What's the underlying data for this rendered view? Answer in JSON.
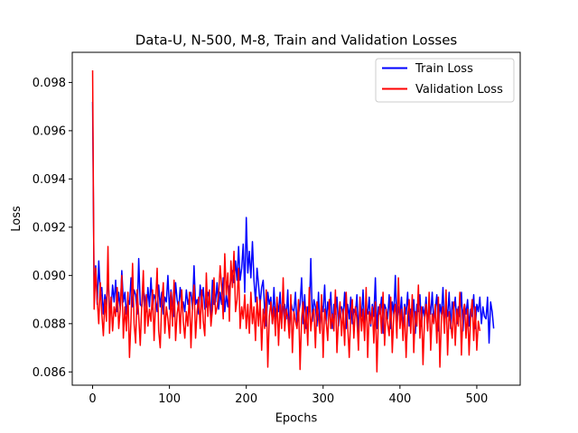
{
  "chart_data": {
    "type": "line",
    "title": "Data-U, N-500, M-8, Train and Validation Losses",
    "xlabel": "Epochs",
    "ylabel": "Loss",
    "xlim": [
      -26.5,
      556.5
    ],
    "ylim": [
      0.08545,
      0.09925
    ],
    "xticks": [
      0,
      100,
      200,
      300,
      400,
      500
    ],
    "yticks": [
      0.086,
      0.088,
      0.09,
      0.092,
      0.094,
      0.096,
      0.098
    ],
    "ytick_labels": [
      "0.086",
      "0.088",
      "0.090",
      "0.092",
      "0.094",
      "0.096",
      "0.098"
    ],
    "grid": false,
    "legend_position": "top-right",
    "series": [
      {
        "name": "Train Loss",
        "color": "#0000ff",
        "x_start": 0,
        "x_step": 2,
        "values": [
          0.0972,
          0.089,
          0.0904,
          0.0888,
          0.0906,
          0.0893,
          0.0895,
          0.0884,
          0.0892,
          0.0888,
          0.09,
          0.0887,
          0.0886,
          0.0896,
          0.0889,
          0.0898,
          0.0885,
          0.0893,
          0.0886,
          0.0902,
          0.0889,
          0.0893,
          0.0884,
          0.089,
          0.0888,
          0.0899,
          0.0887,
          0.0894,
          0.0892,
          0.0884,
          0.0907,
          0.0888,
          0.0887,
          0.0894,
          0.0891,
          0.0885,
          0.0895,
          0.0887,
          0.0899,
          0.0886,
          0.0892,
          0.089,
          0.0885,
          0.0896,
          0.0887,
          0.0893,
          0.0884,
          0.0891,
          0.0889,
          0.09,
          0.0886,
          0.0894,
          0.0888,
          0.0883,
          0.0897,
          0.089,
          0.0886,
          0.0895,
          0.0887,
          0.0889,
          0.0885,
          0.0894,
          0.0888,
          0.0891,
          0.0893,
          0.0886,
          0.0904,
          0.0888,
          0.089,
          0.0884,
          0.0896,
          0.0889,
          0.0895,
          0.0886,
          0.0887,
          0.0893,
          0.0891,
          0.0883,
          0.0898,
          0.0888,
          0.0889,
          0.0897,
          0.0886,
          0.0893,
          0.0888,
          0.0899,
          0.0885,
          0.0892,
          0.0887,
          0.0895,
          0.0898,
          0.0902,
          0.0897,
          0.0906,
          0.0898,
          0.0912,
          0.0898,
          0.0903,
          0.0913,
          0.0893,
          0.0924,
          0.0901,
          0.091,
          0.0899,
          0.0914,
          0.0898,
          0.0889,
          0.0903,
          0.0896,
          0.0888,
          0.0895,
          0.0898,
          0.0885,
          0.0879,
          0.0893,
          0.0888,
          0.0891,
          0.088,
          0.0895,
          0.0882,
          0.0889,
          0.0885,
          0.0893,
          0.088,
          0.0887,
          0.0888,
          0.0882,
          0.0894,
          0.0876,
          0.0889,
          0.0886,
          0.0885,
          0.0893,
          0.0879,
          0.0884,
          0.0888,
          0.0899,
          0.088,
          0.0892,
          0.0878,
          0.0887,
          0.0885,
          0.0907,
          0.0881,
          0.089,
          0.0887,
          0.0879,
          0.0893,
          0.0877,
          0.0888,
          0.0885,
          0.0896,
          0.088,
          0.0889,
          0.0884,
          0.0893,
          0.0878,
          0.0888,
          0.0884,
          0.0891,
          0.0879,
          0.0886,
          0.0887,
          0.0883,
          0.0893,
          0.0878,
          0.0888,
          0.0882,
          0.0891,
          0.088,
          0.0886,
          0.0884,
          0.0892,
          0.0876,
          0.0888,
          0.0883,
          0.0894,
          0.0878,
          0.0887,
          0.0884,
          0.0891,
          0.0879,
          0.0888,
          0.0883,
          0.0899,
          0.0878,
          0.0887,
          0.0884,
          0.0891,
          0.0876,
          0.0888,
          0.0886,
          0.0882,
          0.0892,
          0.0878,
          0.0889,
          0.0884,
          0.09,
          0.0879,
          0.0887,
          0.0883,
          0.0891,
          0.0877,
          0.0888,
          0.0884,
          0.0893,
          0.0879,
          0.0886,
          0.0883,
          0.089,
          0.0876,
          0.0888,
          0.0885,
          0.0892,
          0.0879,
          0.0887,
          0.0883,
          0.0891,
          0.0878,
          0.0889,
          0.0884,
          0.0893,
          0.088,
          0.0886,
          0.0892,
          0.0877,
          0.0888,
          0.0884,
          0.0895,
          0.0879,
          0.0887,
          0.0883,
          0.0893,
          0.0878,
          0.0889,
          0.0885,
          0.0891,
          0.088,
          0.0887,
          0.0883,
          0.0893,
          0.0877,
          0.0888,
          0.0884,
          0.089,
          0.0879,
          0.0886,
          0.0883,
          0.0892,
          0.0878,
          0.0888,
          0.0885,
          0.0891,
          0.088,
          0.0887,
          0.0883,
          0.0882,
          0.0891,
          0.0872,
          0.0889,
          0.0885,
          0.0878
        ]
      },
      {
        "name": "Validation Loss",
        "color": "#ff0000",
        "x_start": 0,
        "x_step": 2,
        "values": [
          0.0985,
          0.0886,
          0.0903,
          0.089,
          0.088,
          0.0897,
          0.0884,
          0.0875,
          0.089,
          0.0881,
          0.0912,
          0.0876,
          0.0891,
          0.0877,
          0.0887,
          0.0883,
          0.0895,
          0.0878,
          0.0886,
          0.09,
          0.0874,
          0.0887,
          0.0877,
          0.0893,
          0.0866,
          0.0882,
          0.0905,
          0.088,
          0.0872,
          0.0894,
          0.0883,
          0.0871,
          0.0888,
          0.0902,
          0.0876,
          0.0892,
          0.0879,
          0.0886,
          0.0881,
          0.0894,
          0.0873,
          0.0889,
          0.0903,
          0.0877,
          0.087,
          0.0889,
          0.0897,
          0.0876,
          0.0887,
          0.0882,
          0.0874,
          0.0893,
          0.0879,
          0.0898,
          0.0873,
          0.0884,
          0.0889,
          0.0876,
          0.0894,
          0.0881,
          0.0874,
          0.0885,
          0.0879,
          0.0893,
          0.087,
          0.0887,
          0.0896,
          0.0874,
          0.0885,
          0.0891,
          0.0878,
          0.0894,
          0.0881,
          0.0875,
          0.0901,
          0.0883,
          0.0894,
          0.0879,
          0.0886,
          0.0899,
          0.0884,
          0.0887,
          0.0892,
          0.0904,
          0.0895,
          0.0882,
          0.0909,
          0.0892,
          0.0901,
          0.0881,
          0.0906,
          0.0895,
          0.091,
          0.0885,
          0.089,
          0.0903,
          0.0878,
          0.0887,
          0.0882,
          0.0892,
          0.0878,
          0.0888,
          0.0876,
          0.0893,
          0.088,
          0.0887,
          0.0873,
          0.0891,
          0.0879,
          0.089,
          0.0869,
          0.0886,
          0.0878,
          0.0894,
          0.0862,
          0.0883,
          0.0889,
          0.088,
          0.0887,
          0.0875,
          0.0891,
          0.0871,
          0.0888,
          0.0878,
          0.0899,
          0.0877,
          0.0886,
          0.0883,
          0.0874,
          0.0892,
          0.0868,
          0.0885,
          0.0881,
          0.0878,
          0.089,
          0.0861,
          0.0882,
          0.0889,
          0.0876,
          0.0887,
          0.0871,
          0.0895,
          0.0877,
          0.0884,
          0.0886,
          0.087,
          0.0889,
          0.0882,
          0.0876,
          0.0892,
          0.0866,
          0.0886,
          0.0881,
          0.0873,
          0.089,
          0.0878,
          0.0884,
          0.0877,
          0.0894,
          0.0868,
          0.0882,
          0.0889,
          0.0875,
          0.0886,
          0.0871,
          0.0893,
          0.0879,
          0.0866,
          0.0884,
          0.089,
          0.0874,
          0.0887,
          0.0882,
          0.0869,
          0.0891,
          0.0877,
          0.0886,
          0.0873,
          0.0895,
          0.0866,
          0.0885,
          0.088,
          0.0887,
          0.0872,
          0.0889,
          0.086,
          0.0883,
          0.0888,
          0.0876,
          0.0893,
          0.0871,
          0.0886,
          0.088,
          0.0875,
          0.0891,
          0.0868,
          0.0884,
          0.0888,
          0.0874,
          0.0899,
          0.0878,
          0.0886,
          0.0873,
          0.0887,
          0.0866,
          0.0883,
          0.089,
          0.0876,
          0.0892,
          0.0868,
          0.0885,
          0.0879,
          0.0896,
          0.0874,
          0.0887,
          0.0863,
          0.0882,
          0.0888,
          0.0877,
          0.0893,
          0.0869,
          0.0884,
          0.088,
          0.0888,
          0.0872,
          0.0891,
          0.0862,
          0.0883,
          0.0887,
          0.0876,
          0.0894,
          0.0867,
          0.0885,
          0.088,
          0.0874,
          0.0889,
          0.0871,
          0.0886,
          0.0879,
          0.0893,
          0.0867,
          0.0884,
          0.0888,
          0.0874,
          0.0886,
          0.0867,
          0.0883,
          0.089,
          0.0873,
          0.0887,
          0.0869,
          0.0881,
          0.0877
        ]
      }
    ]
  }
}
